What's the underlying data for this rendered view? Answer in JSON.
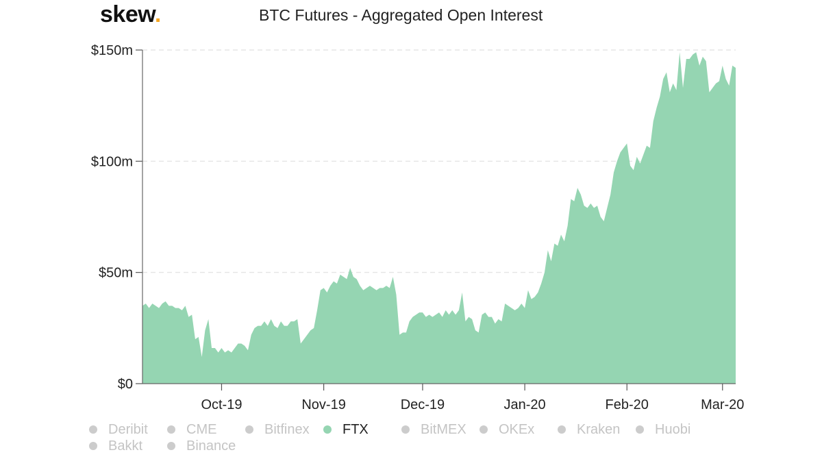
{
  "header": {
    "logo_text": "skew",
    "logo_dot": ".",
    "title": "BTC Futures - Aggregated Open Interest"
  },
  "colors": {
    "accent_logo": "#f5a623",
    "ftx_fill": "#95d5b2",
    "inactive_legend": "#cccccc",
    "gridline": "#e6e6e6"
  },
  "chart_data": {
    "type": "area",
    "title": "BTC Futures - Aggregated Open Interest",
    "xlabel": "",
    "ylabel": "",
    "y_ticks": [
      {
        "value": 0,
        "label": "$0"
      },
      {
        "value": 50,
        "label": "$50m"
      },
      {
        "value": 100,
        "label": "$100m"
      },
      {
        "value": 150,
        "label": "$150m"
      }
    ],
    "ylim": [
      0,
      150
    ],
    "x_ticks": [
      {
        "date": "2019-10-01",
        "label": "Oct-19"
      },
      {
        "date": "2019-11-01",
        "label": "Nov-19"
      },
      {
        "date": "2019-12-01",
        "label": "Dec-19"
      },
      {
        "date": "2020-01-01",
        "label": "Jan-20"
      },
      {
        "date": "2020-02-01",
        "label": "Feb-20"
      },
      {
        "date": "2020-03-01",
        "label": "Mar-20"
      }
    ],
    "xlim": [
      "2019-09-07",
      "2020-03-05"
    ],
    "grid": true,
    "legend_position": "bottom",
    "series": [
      {
        "name": "FTX",
        "points": [
          [
            "2019-09-07",
            35
          ],
          [
            "2019-09-08",
            36
          ],
          [
            "2019-09-09",
            34
          ],
          [
            "2019-09-10",
            36
          ],
          [
            "2019-09-11",
            35
          ],
          [
            "2019-09-12",
            34
          ],
          [
            "2019-09-13",
            36
          ],
          [
            "2019-09-14",
            37
          ],
          [
            "2019-09-15",
            35
          ],
          [
            "2019-09-16",
            35
          ],
          [
            "2019-09-17",
            34
          ],
          [
            "2019-09-18",
            34
          ],
          [
            "2019-09-19",
            33
          ],
          [
            "2019-09-20",
            35
          ],
          [
            "2019-09-21",
            30
          ],
          [
            "2019-09-22",
            31
          ],
          [
            "2019-09-23",
            20
          ],
          [
            "2019-09-24",
            21
          ],
          [
            "2019-09-25",
            12
          ],
          [
            "2019-09-26",
            24
          ],
          [
            "2019-09-27",
            29
          ],
          [
            "2019-09-28",
            16
          ],
          [
            "2019-09-29",
            16
          ],
          [
            "2019-09-30",
            14
          ],
          [
            "2019-10-01",
            16
          ],
          [
            "2019-10-02",
            14
          ],
          [
            "2019-10-03",
            15
          ],
          [
            "2019-10-04",
            14
          ],
          [
            "2019-10-05",
            16
          ],
          [
            "2019-10-06",
            18
          ],
          [
            "2019-10-07",
            18
          ],
          [
            "2019-10-08",
            17
          ],
          [
            "2019-10-09",
            15
          ],
          [
            "2019-10-10",
            22
          ],
          [
            "2019-10-11",
            25
          ],
          [
            "2019-10-12",
            26
          ],
          [
            "2019-10-13",
            26
          ],
          [
            "2019-10-14",
            28
          ],
          [
            "2019-10-15",
            26
          ],
          [
            "2019-10-16",
            29
          ],
          [
            "2019-10-17",
            26
          ],
          [
            "2019-10-18",
            25
          ],
          [
            "2019-10-19",
            28
          ],
          [
            "2019-10-20",
            26
          ],
          [
            "2019-10-21",
            26
          ],
          [
            "2019-10-22",
            28
          ],
          [
            "2019-10-23",
            28
          ],
          [
            "2019-10-24",
            29
          ],
          [
            "2019-10-25",
            18
          ],
          [
            "2019-10-26",
            20
          ],
          [
            "2019-10-27",
            22
          ],
          [
            "2019-10-28",
            24
          ],
          [
            "2019-10-29",
            25
          ],
          [
            "2019-10-30",
            33
          ],
          [
            "2019-10-31",
            42
          ],
          [
            "2019-11-01",
            43
          ],
          [
            "2019-11-02",
            41
          ],
          [
            "2019-11-03",
            44
          ],
          [
            "2019-11-04",
            46
          ],
          [
            "2019-11-05",
            45
          ],
          [
            "2019-11-06",
            49
          ],
          [
            "2019-11-07",
            48
          ],
          [
            "2019-11-08",
            47
          ],
          [
            "2019-11-09",
            52
          ],
          [
            "2019-11-10",
            48
          ],
          [
            "2019-11-11",
            47
          ],
          [
            "2019-11-12",
            44
          ],
          [
            "2019-11-13",
            42
          ],
          [
            "2019-11-14",
            43
          ],
          [
            "2019-11-15",
            44
          ],
          [
            "2019-11-16",
            43
          ],
          [
            "2019-11-17",
            42
          ],
          [
            "2019-11-18",
            43
          ],
          [
            "2019-11-19",
            43
          ],
          [
            "2019-11-20",
            44
          ],
          [
            "2019-11-21",
            43
          ],
          [
            "2019-11-22",
            48
          ],
          [
            "2019-11-23",
            40
          ],
          [
            "2019-11-24",
            22
          ],
          [
            "2019-11-25",
            23
          ],
          [
            "2019-11-26",
            23
          ],
          [
            "2019-11-27",
            28
          ],
          [
            "2019-11-28",
            30
          ],
          [
            "2019-11-29",
            31
          ],
          [
            "2019-11-30",
            32
          ],
          [
            "2019-12-01",
            32
          ],
          [
            "2019-12-02",
            30
          ],
          [
            "2019-12-03",
            31
          ],
          [
            "2019-12-04",
            30
          ],
          [
            "2019-12-05",
            31
          ],
          [
            "2019-12-06",
            32
          ],
          [
            "2019-12-07",
            30
          ],
          [
            "2019-12-08",
            33
          ],
          [
            "2019-12-09",
            31
          ],
          [
            "2019-12-10",
            33
          ],
          [
            "2019-12-11",
            31
          ],
          [
            "2019-12-12",
            33
          ],
          [
            "2019-12-13",
            41
          ],
          [
            "2019-12-14",
            28
          ],
          [
            "2019-12-15",
            30
          ],
          [
            "2019-12-16",
            29
          ],
          [
            "2019-12-17",
            24
          ],
          [
            "2019-12-18",
            23
          ],
          [
            "2019-12-19",
            31
          ],
          [
            "2019-12-20",
            32
          ],
          [
            "2019-12-21",
            30
          ],
          [
            "2019-12-22",
            30
          ],
          [
            "2019-12-23",
            27
          ],
          [
            "2019-12-24",
            29
          ],
          [
            "2019-12-25",
            28
          ],
          [
            "2019-12-26",
            36
          ],
          [
            "2019-12-27",
            35
          ],
          [
            "2019-12-28",
            34
          ],
          [
            "2019-12-29",
            33
          ],
          [
            "2019-12-30",
            34
          ],
          [
            "2019-12-31",
            36
          ],
          [
            "2020-01-01",
            34
          ],
          [
            "2020-01-02",
            42
          ],
          [
            "2020-01-03",
            38
          ],
          [
            "2020-01-04",
            39
          ],
          [
            "2020-01-05",
            41
          ],
          [
            "2020-01-06",
            45
          ],
          [
            "2020-01-07",
            50
          ],
          [
            "2020-01-08",
            60
          ],
          [
            "2020-01-09",
            55
          ],
          [
            "2020-01-10",
            63
          ],
          [
            "2020-01-11",
            62
          ],
          [
            "2020-01-12",
            67
          ],
          [
            "2020-01-13",
            64
          ],
          [
            "2020-01-14",
            71
          ],
          [
            "2020-01-15",
            83
          ],
          [
            "2020-01-16",
            82
          ],
          [
            "2020-01-17",
            88
          ],
          [
            "2020-01-18",
            85
          ],
          [
            "2020-01-19",
            80
          ],
          [
            "2020-01-20",
            79
          ],
          [
            "2020-01-21",
            81
          ],
          [
            "2020-01-22",
            79
          ],
          [
            "2020-01-23",
            80
          ],
          [
            "2020-01-24",
            75
          ],
          [
            "2020-01-25",
            73
          ],
          [
            "2020-01-26",
            79
          ],
          [
            "2020-01-27",
            85
          ],
          [
            "2020-01-28",
            95
          ],
          [
            "2020-01-29",
            100
          ],
          [
            "2020-01-30",
            104
          ],
          [
            "2020-01-31",
            106
          ],
          [
            "2020-02-01",
            108
          ],
          [
            "2020-02-02",
            98
          ],
          [
            "2020-02-03",
            96
          ],
          [
            "2020-02-04",
            102
          ],
          [
            "2020-02-05",
            99
          ],
          [
            "2020-02-06",
            103
          ],
          [
            "2020-02-07",
            107
          ],
          [
            "2020-02-08",
            106
          ],
          [
            "2020-02-09",
            118
          ],
          [
            "2020-02-10",
            124
          ],
          [
            "2020-02-11",
            129
          ],
          [
            "2020-02-12",
            137
          ],
          [
            "2020-02-13",
            140
          ],
          [
            "2020-02-14",
            131
          ],
          [
            "2020-02-15",
            135
          ],
          [
            "2020-02-16",
            132
          ],
          [
            "2020-02-17",
            149
          ],
          [
            "2020-02-18",
            133
          ],
          [
            "2020-02-19",
            146
          ],
          [
            "2020-02-20",
            146
          ],
          [
            "2020-02-21",
            148
          ],
          [
            "2020-02-22",
            149
          ],
          [
            "2020-02-23",
            143
          ],
          [
            "2020-02-24",
            147
          ],
          [
            "2020-02-25",
            145
          ],
          [
            "2020-02-26",
            131
          ],
          [
            "2020-02-27",
            133
          ],
          [
            "2020-02-28",
            135
          ],
          [
            "2020-02-29",
            136
          ],
          [
            "2020-03-01",
            143
          ],
          [
            "2020-03-02",
            137
          ],
          [
            "2020-03-03",
            134
          ],
          [
            "2020-03-04",
            143
          ],
          [
            "2020-03-05",
            142
          ]
        ]
      }
    ]
  },
  "legend": {
    "items": [
      {
        "name": "Deribit",
        "active": false
      },
      {
        "name": "CME",
        "active": false
      },
      {
        "name": "Bitfinex",
        "active": false
      },
      {
        "name": "FTX",
        "active": true
      },
      {
        "name": "BitMEX",
        "active": false
      },
      {
        "name": "OKEx",
        "active": false
      },
      {
        "name": "Kraken",
        "active": false
      },
      {
        "name": "Huobi",
        "active": false
      },
      {
        "name": "Bakkt",
        "active": false
      },
      {
        "name": "Binance",
        "active": false
      }
    ]
  }
}
